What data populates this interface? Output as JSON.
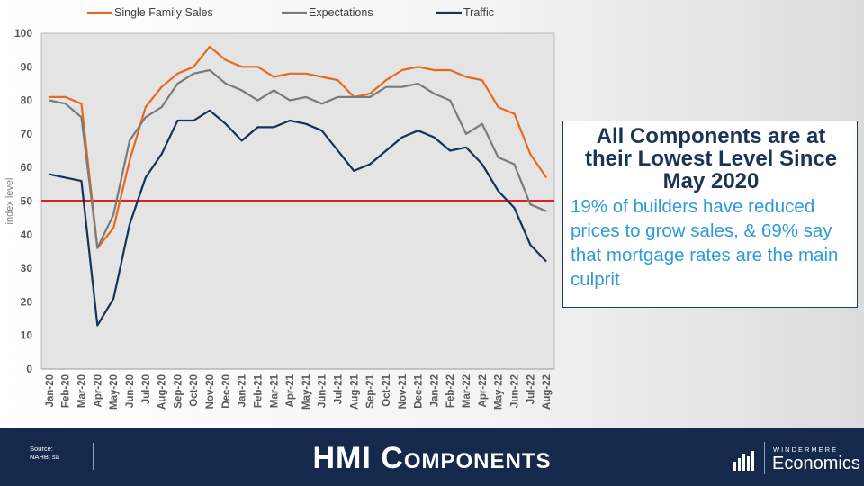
{
  "chart_data": {
    "type": "line",
    "title": "",
    "xlabel": "",
    "ylabel": "index level",
    "ylim": [
      0,
      100
    ],
    "yticks": [
      0,
      10,
      20,
      30,
      40,
      50,
      60,
      70,
      80,
      90,
      100
    ],
    "categories": [
      "Jan-20",
      "Feb-20",
      "Mar-20",
      "Apr-20",
      "May-20",
      "Jun-20",
      "Jul-20",
      "Aug-20",
      "Sep-20",
      "Oct-20",
      "Nov-20",
      "Dec-20",
      "Jan-21",
      "Feb-21",
      "Mar-21",
      "Apr-21",
      "May-21",
      "Jun-21",
      "Jul-21",
      "Aug-21",
      "Sep-21",
      "Oct-21",
      "Nov-21",
      "Dec-21",
      "Jan-22",
      "Feb-22",
      "Mar-22",
      "Apr-22",
      "May-22",
      "Jun-22",
      "Jul-22",
      "Aug-22"
    ],
    "series": [
      {
        "name": "Single Family Sales",
        "color": "#e8681e",
        "values": [
          81,
          81,
          79,
          36,
          42,
          62,
          78,
          84,
          88,
          90,
          96,
          92,
          90,
          90,
          87,
          88,
          88,
          87,
          86,
          81,
          82,
          86,
          89,
          90,
          89,
          89,
          87,
          86,
          78,
          76,
          64,
          57
        ]
      },
      {
        "name": "Expectations",
        "color": "#7a7a7a",
        "values": [
          80,
          79,
          75,
          36,
          46,
          68,
          75,
          78,
          85,
          88,
          89,
          85,
          83,
          80,
          83,
          80,
          81,
          79,
          81,
          81,
          81,
          84,
          84,
          85,
          82,
          80,
          70,
          73,
          63,
          61,
          49,
          47
        ]
      },
      {
        "name": "Traffic",
        "color": "#16315a",
        "values": [
          58,
          57,
          56,
          13,
          21,
          43,
          57,
          64,
          74,
          74,
          77,
          73,
          68,
          72,
          72,
          74,
          73,
          71,
          65,
          59,
          61,
          65,
          69,
          71,
          69,
          65,
          66,
          61,
          53,
          48,
          37,
          32
        ]
      }
    ],
    "reference_line": {
      "value": 50,
      "color": "#e02020"
    },
    "legend_position": "top"
  },
  "callout": {
    "title": "All Components are at their Lowest Level Since May 2020",
    "body": "19% of builders have reduced prices to grow sales, & 69% say that mortgage rates are the main culprit"
  },
  "footer": {
    "source_label": "Source:",
    "source_value": "NAHB; sa",
    "title": "HMI Components",
    "brand_top": "WINDERMERE",
    "brand_bottom": "Economics"
  },
  "colors": {
    "footer_bg": "#14294b",
    "callout_title": "#1b3455",
    "callout_body": "#2e9ad8"
  }
}
